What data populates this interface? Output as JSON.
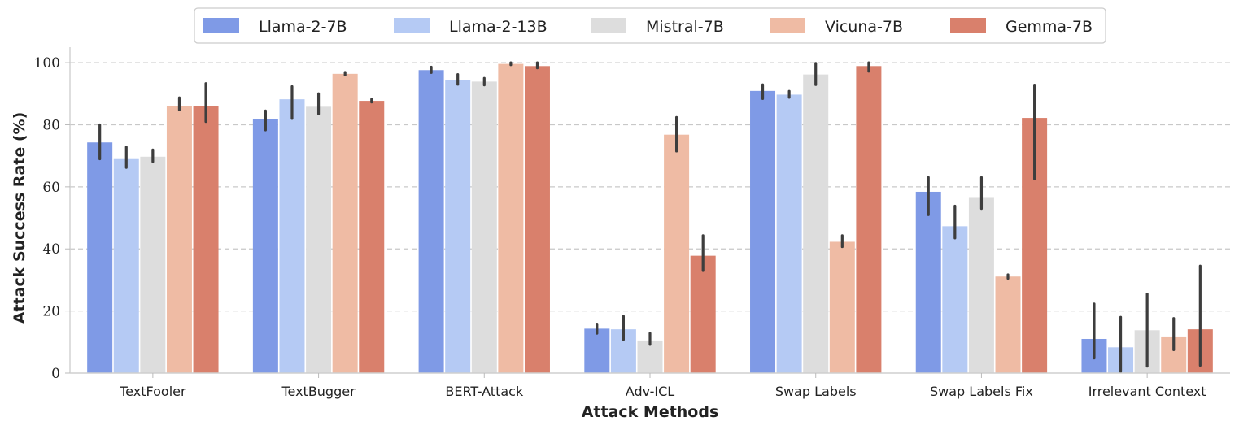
{
  "chart_data": {
    "type": "bar",
    "title": "",
    "xlabel": "Attack Methods",
    "ylabel": "Attack Success Rate (%)",
    "ylim": [
      0,
      105
    ],
    "yticks": [
      0,
      20,
      40,
      60,
      80,
      100
    ],
    "grid": "y-dashed",
    "legend_position": "top-center",
    "categories": [
      "TextFooler",
      "TextBugger",
      "BERT-Attack",
      "Adv-ICL",
      "Swap Labels",
      "Swap Labels Fix",
      "Irrelevant Context"
    ],
    "series": [
      {
        "name": "Llama-2-7B",
        "color": "#7f9ae6",
        "values": [
          74.3,
          81.7,
          97.6,
          14.3,
          90.9,
          58.4,
          11.0
        ],
        "err_low": [
          69.0,
          78.3,
          96.8,
          12.8,
          88.4,
          51.0,
          4.8
        ],
        "err_high": [
          80.0,
          84.5,
          98.6,
          15.8,
          92.9,
          63.0,
          22.3
        ]
      },
      {
        "name": "Llama-2-13B",
        "color": "#b5caf4",
        "values": [
          69.2,
          88.2,
          94.4,
          14.1,
          89.7,
          47.3,
          8.3
        ],
        "err_low": [
          66.2,
          82.0,
          93.0,
          10.8,
          88.8,
          43.5,
          0.5
        ],
        "err_high": [
          72.8,
          92.3,
          96.2,
          18.3,
          90.8,
          53.8,
          18.0
        ]
      },
      {
        "name": "Mistral-7B",
        "color": "#dddddd",
        "values": [
          69.7,
          85.8,
          93.9,
          10.5,
          96.2,
          56.7,
          13.8
        ],
        "err_low": [
          68.1,
          83.5,
          92.8,
          9.2,
          92.9,
          53.0,
          2.2
        ],
        "err_high": [
          71.9,
          90.0,
          95.0,
          12.8,
          99.8,
          63.0,
          25.5
        ]
      },
      {
        "name": "Vicuna-7B",
        "color": "#efbba4",
        "values": [
          86.0,
          96.4,
          99.6,
          76.8,
          42.3,
          31.1,
          11.8
        ],
        "err_low": [
          84.8,
          96.0,
          99.3,
          71.5,
          40.7,
          30.5,
          7.5
        ],
        "err_high": [
          88.7,
          96.9,
          100.0,
          82.4,
          44.3,
          31.7,
          17.6
        ]
      },
      {
        "name": "Gemma-7B",
        "color": "#d9806c",
        "values": [
          86.1,
          87.7,
          98.9,
          37.8,
          98.9,
          82.2,
          14.1
        ],
        "err_low": [
          81.0,
          87.3,
          98.3,
          33.0,
          97.2,
          62.5,
          2.5
        ],
        "err_high": [
          93.3,
          88.2,
          100.0,
          44.3,
          100.0,
          92.8,
          34.5
        ]
      }
    ]
  }
}
